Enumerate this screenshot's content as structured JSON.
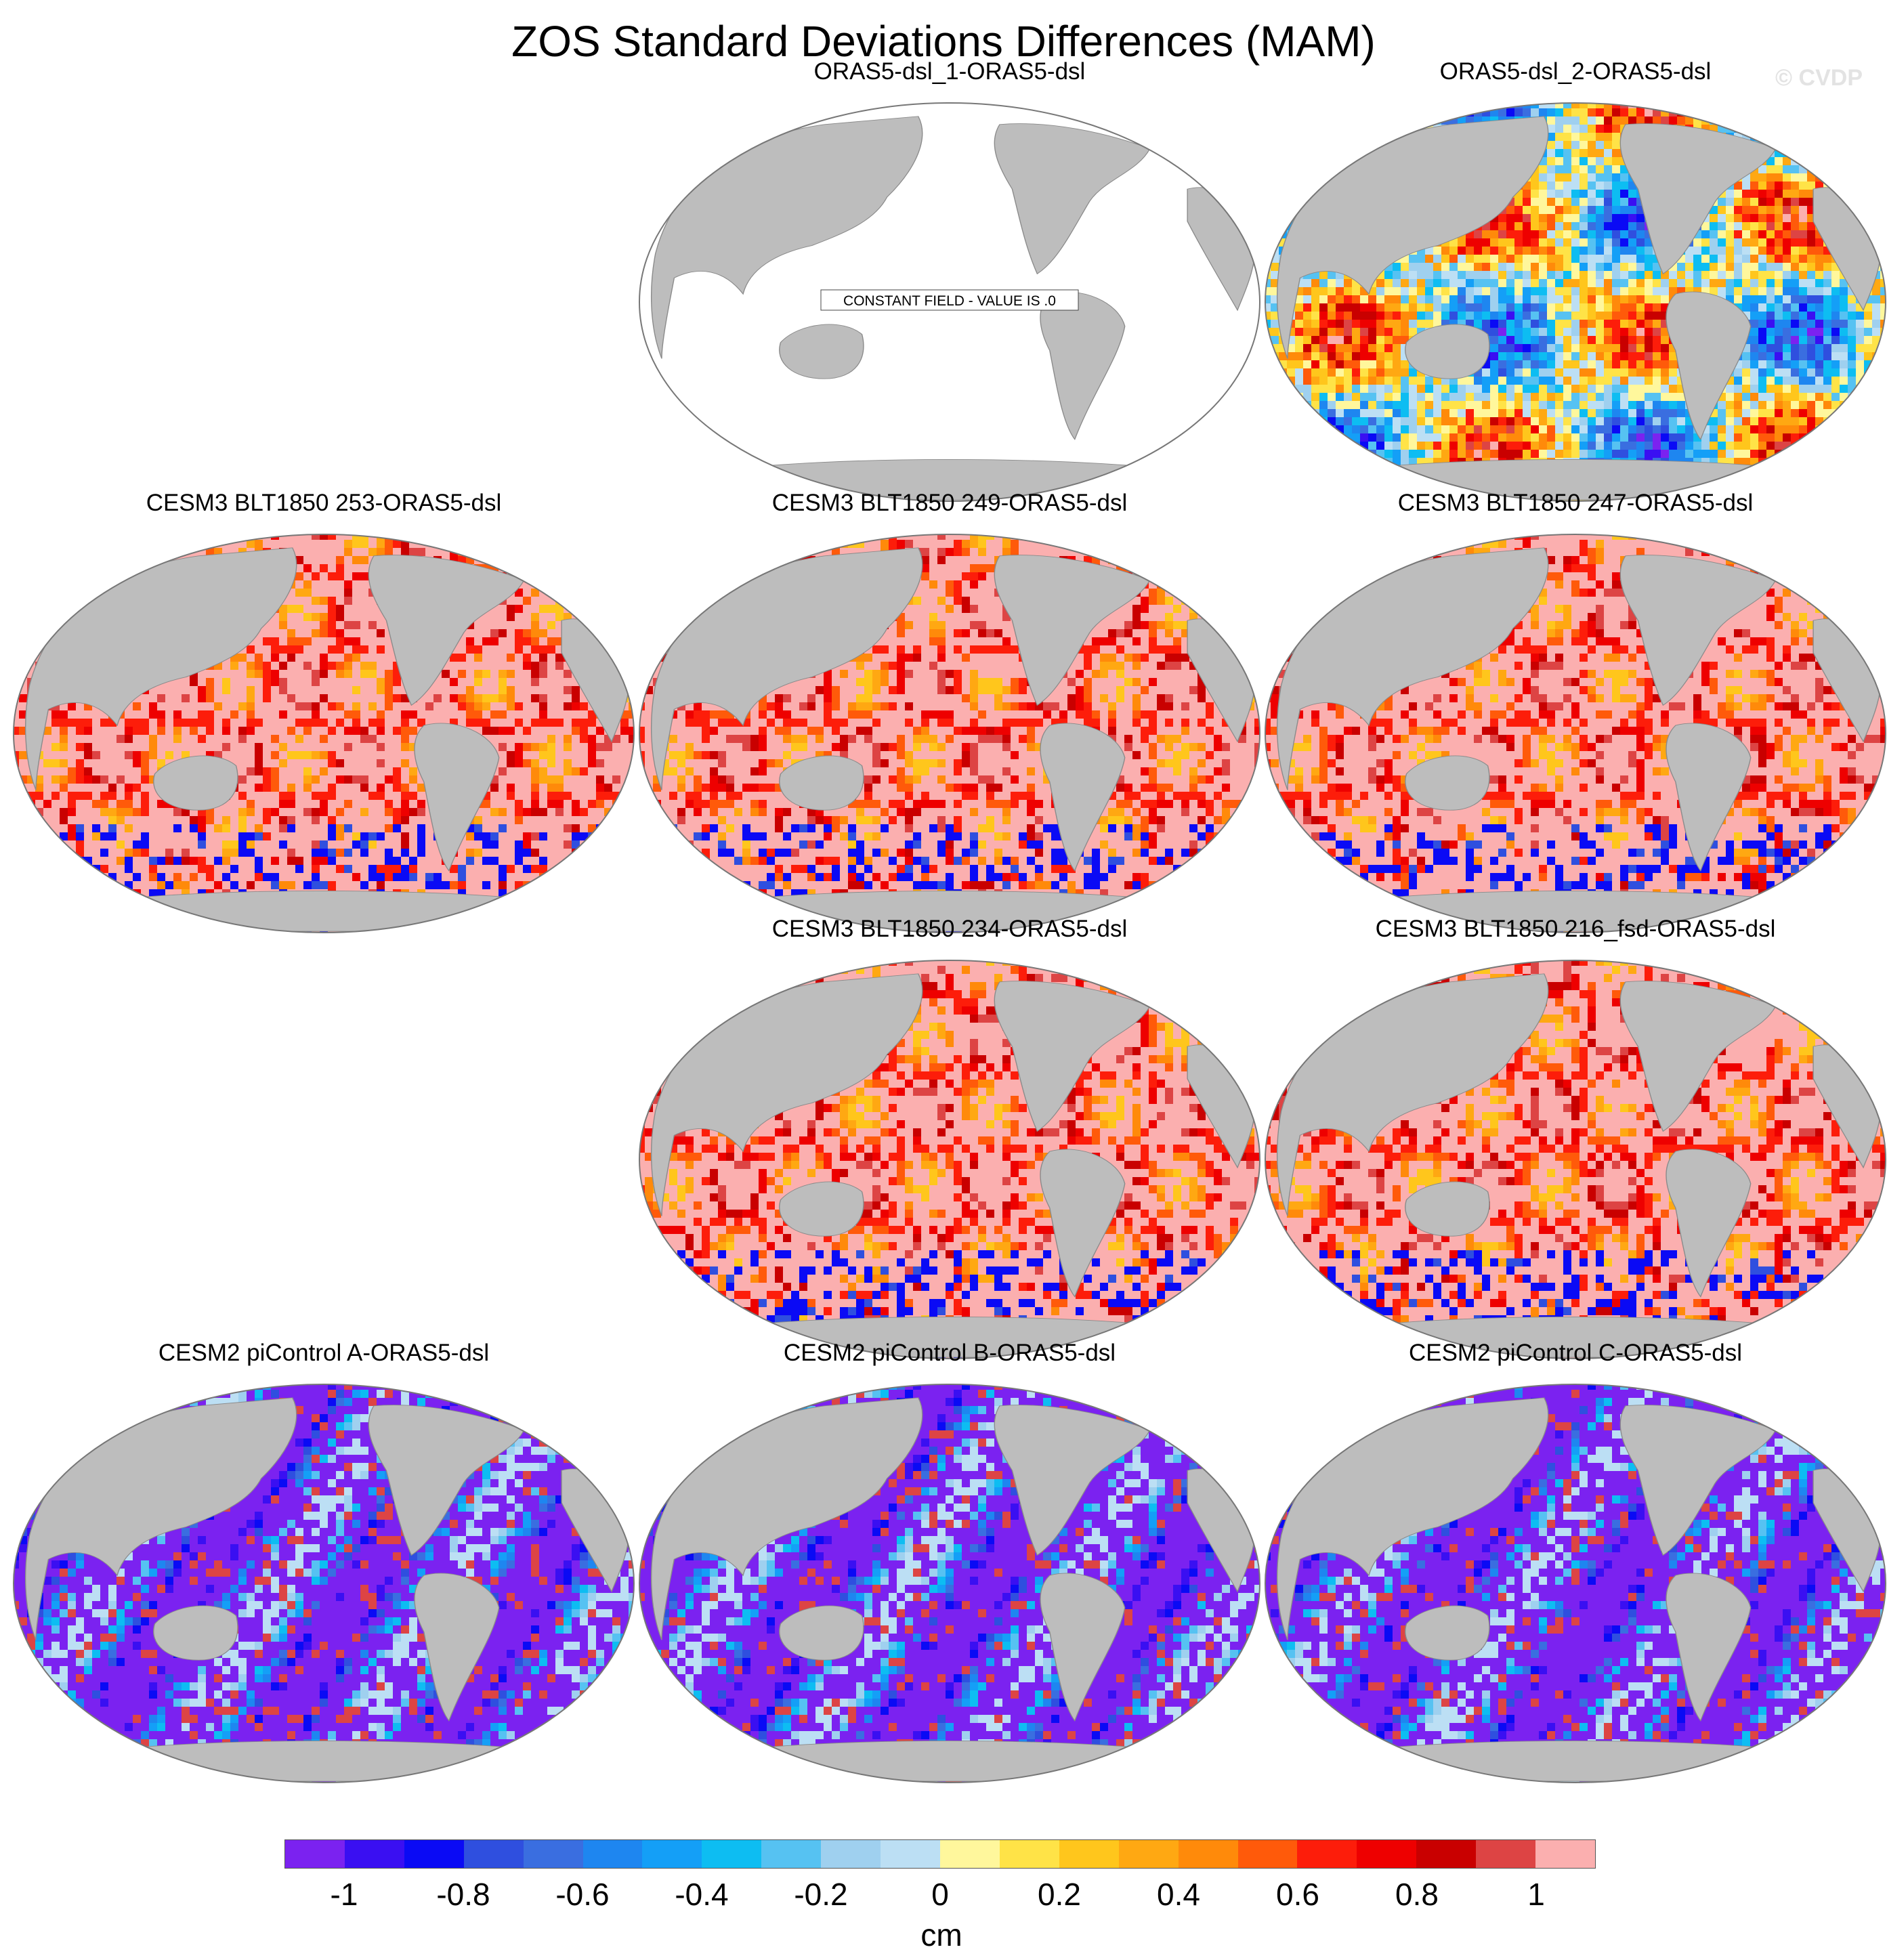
{
  "title": "ZOS Standard Deviations Differences (MAM)",
  "watermark": "© CVDP",
  "panels": [
    {
      "title": "ORAS5-dsl_1-ORAS5-dsl",
      "pattern": "constant",
      "note": "CONSTANT FIELD - VALUE IS .0"
    },
    {
      "title": "ORAS5-dsl_2-ORAS5-dsl",
      "pattern": "mixed"
    },
    {
      "title": "CESM3 BLT1850 253-ORAS5-dsl",
      "pattern": "positive"
    },
    {
      "title": "CESM3 BLT1850 249-ORAS5-dsl",
      "pattern": "positive"
    },
    {
      "title": "CESM3 BLT1850 247-ORAS5-dsl",
      "pattern": "positive"
    },
    {
      "title": "CESM3 BLT1850 234-ORAS5-dsl",
      "pattern": "positive"
    },
    {
      "title": "CESM3 BLT1850 216_fsd-ORAS5-dsl",
      "pattern": "positive"
    },
    {
      "title": "CESM2 piControl A-ORAS5-dsl",
      "pattern": "negative"
    },
    {
      "title": "CESM2 piControl B-ORAS5-dsl",
      "pattern": "negative"
    },
    {
      "title": "CESM2 piControl C-ORAS5-dsl",
      "pattern": "negative"
    }
  ],
  "colorbar": {
    "unit": "cm",
    "ticks": [
      "-1",
      "-0.8",
      "-0.6",
      "-0.4",
      "-0.2",
      "0",
      "0.2",
      "0.4",
      "0.6",
      "0.8",
      "1"
    ],
    "colors": [
      "#7b22f0",
      "#3a0ff2",
      "#0a0af5",
      "#2f4fdf",
      "#3a6ee0",
      "#1e86f0",
      "#149ff7",
      "#0dbdf2",
      "#56c2f2",
      "#9fd0ef",
      "#bcdff4",
      "#fff79c",
      "#ffe347",
      "#ffc61c",
      "#ffa812",
      "#ff8a0a",
      "#ff5a0a",
      "#fd1d0a",
      "#ee0000",
      "#c90000",
      "#dd4444",
      "#fbafaf"
    ]
  },
  "legend": {
    "land": "#bdbdbd"
  }
}
